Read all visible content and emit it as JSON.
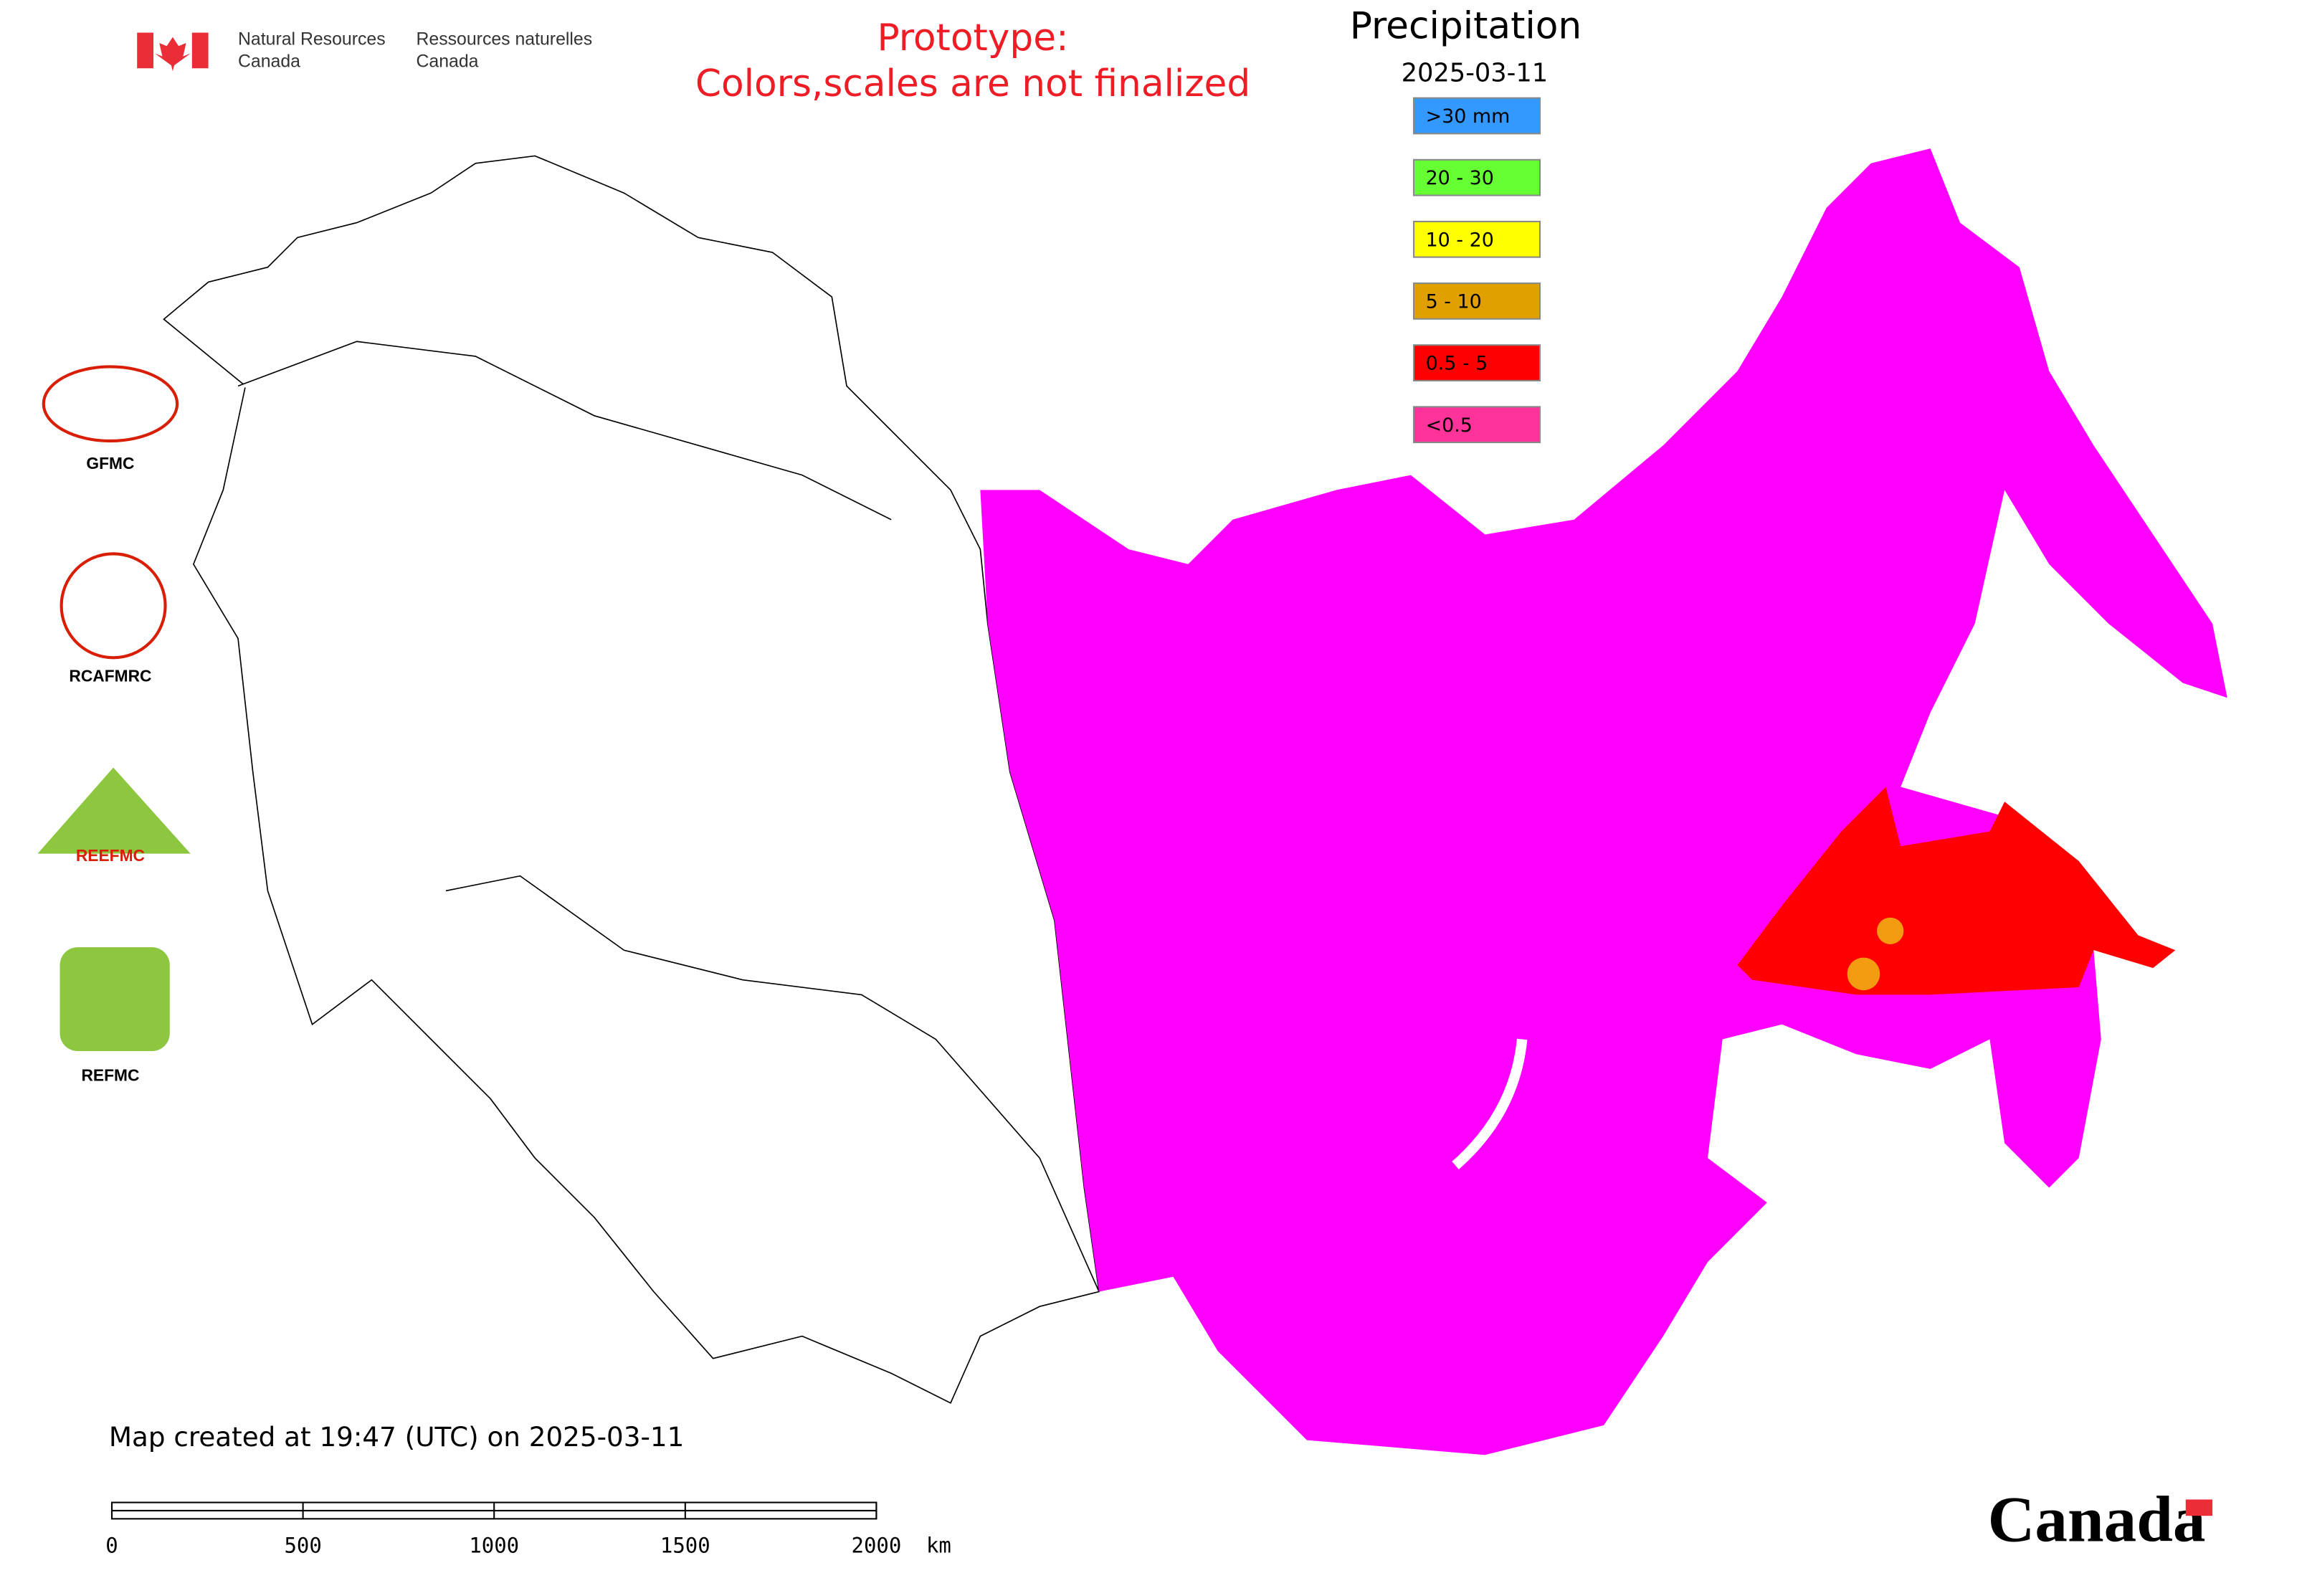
{
  "header": {
    "agency_en": [
      "Natural Resources",
      "Canada"
    ],
    "agency_fr": [
      "Ressources naturelles",
      "Canada"
    ]
  },
  "notice": [
    "Prototype:",
    "Colors,scales are not finalized"
  ],
  "legend": {
    "title": "Precipitation",
    "date": "2025-03-11",
    "items": [
      {
        "label": ">30 mm",
        "color": "#3399ff"
      },
      {
        "label": "20 - 30",
        "color": "#66ff33"
      },
      {
        "label": "10 - 20",
        "color": "#ffff00"
      },
      {
        "label": "5 - 10",
        "color": "#e0a000"
      },
      {
        "label": "0.5 - 5",
        "color": "#ff0000"
      },
      {
        "label": "<0.5",
        "color": "#ff3399"
      }
    ]
  },
  "partners": [
    "GFMC",
    "RCAFMRC",
    "REEFMC",
    "REFMC"
  ],
  "footer": {
    "created": "Map created at 19:47 (UTC) on 2025-03-11",
    "wordmark": "Canada"
  },
  "scale_bar": {
    "ticks": [
      0,
      500,
      1000,
      1500,
      2000
    ],
    "unit": "km"
  }
}
